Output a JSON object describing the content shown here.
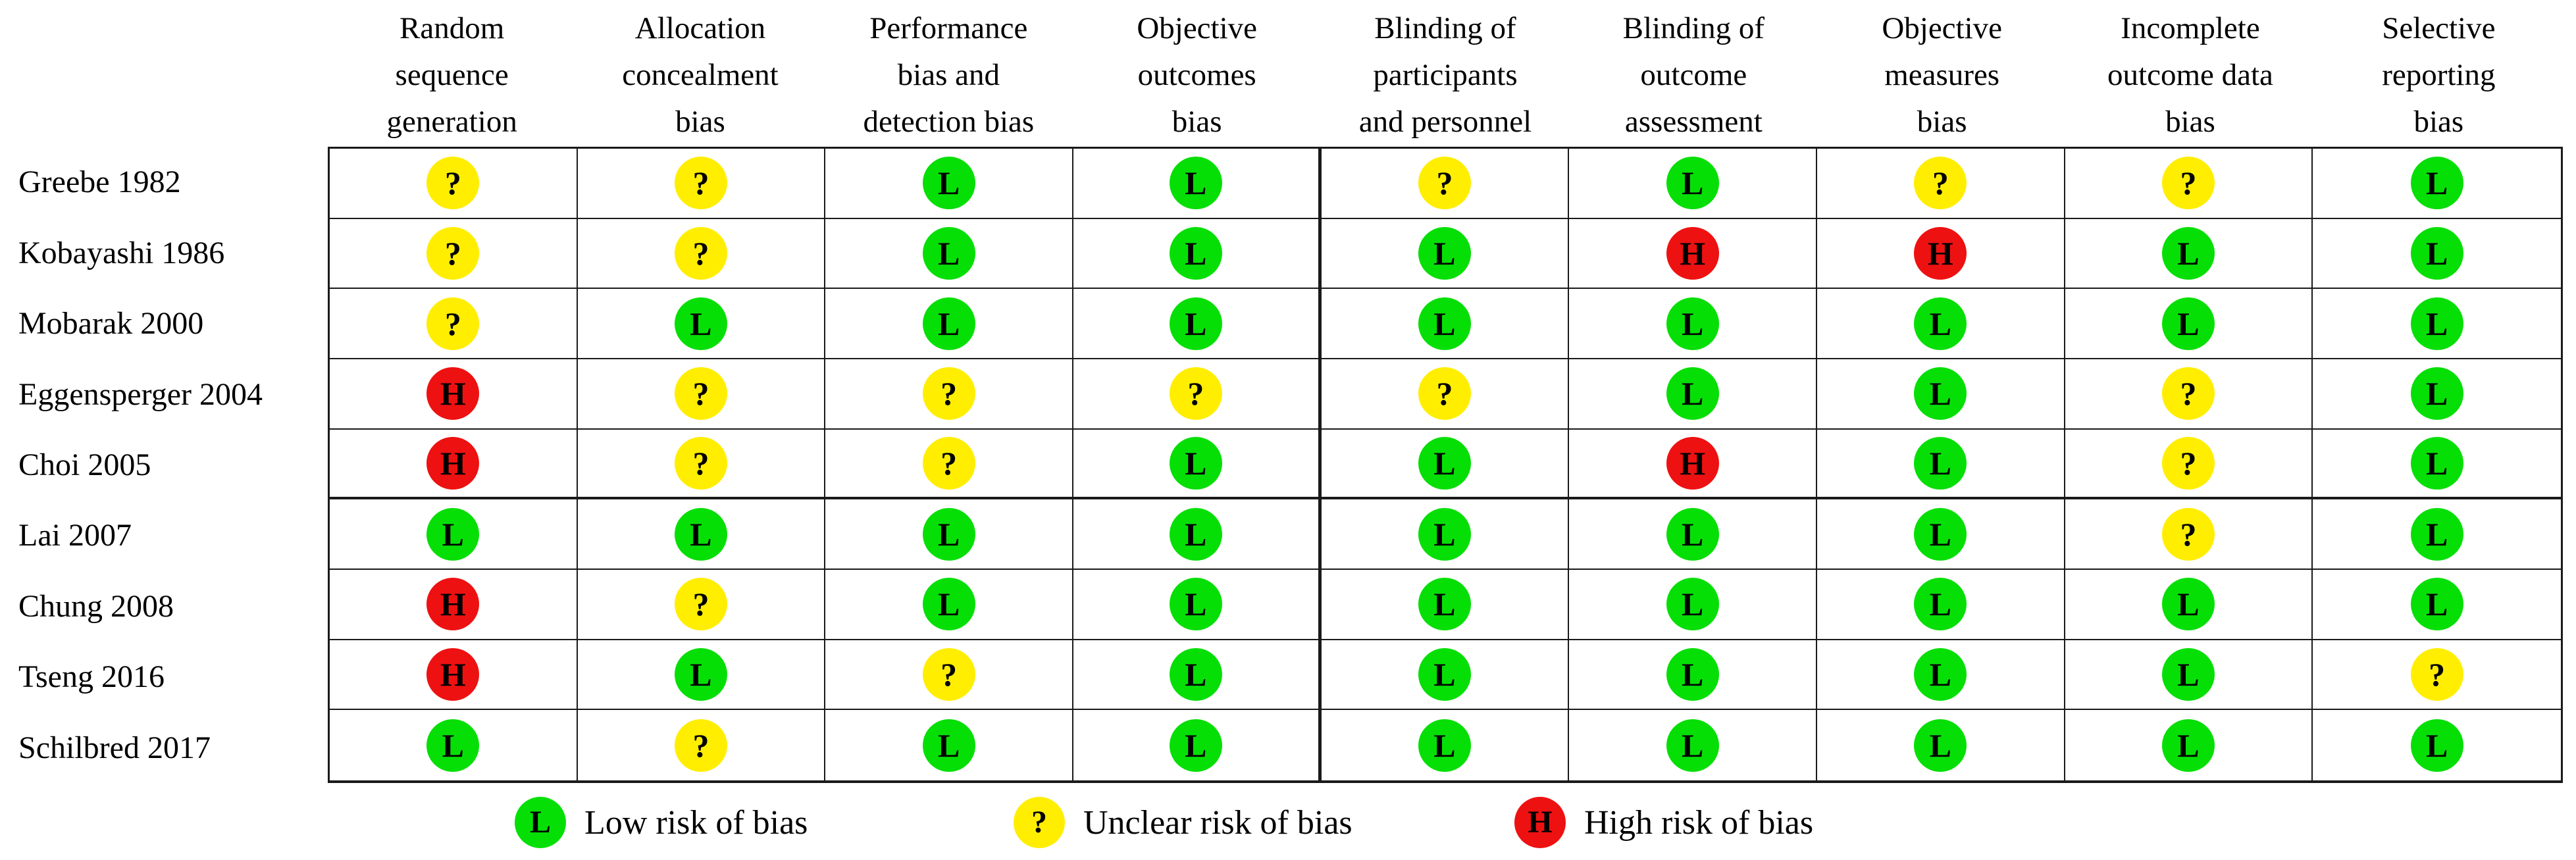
{
  "chart_data": {
    "type": "table",
    "subtype": "risk-of-bias-summary",
    "columns": [
      "Random sequence generation",
      "Allocation concealment bias",
      "Performance bias and detection bias",
      "Objective outcomes bias",
      "Blinding of participants and personnel",
      "Blinding of outcome assessment",
      "Objective measures bias",
      "Incomplete outcome data bias",
      "Selective reporting bias"
    ],
    "header_lines": [
      [
        "Random",
        "sequence",
        "generation"
      ],
      [
        "Allocation",
        "concealment",
        "bias"
      ],
      [
        "Performance",
        "bias and",
        "detection bias"
      ],
      [
        "Objective",
        "outcomes",
        "bias"
      ],
      [
        "Blinding of",
        "participants",
        "and personnel"
      ],
      [
        "Blinding of",
        "outcome",
        "assessment"
      ],
      [
        "Objective",
        "measures",
        "bias"
      ],
      [
        "Incomplete",
        "outcome data",
        "bias"
      ],
      [
        "Selective",
        "reporting",
        "bias"
      ]
    ],
    "rows": [
      "Greebe 1982",
      "Kobayashi 1986",
      "Mobarak 2000",
      "Eggensperger 2004",
      "Choi 2005",
      "Lai 2007",
      "Chung 2008",
      "Tseng 2016",
      "Schilbred 2017"
    ],
    "values": [
      [
        "unclear",
        "unclear",
        "low",
        "low",
        "unclear",
        "low",
        "unclear",
        "unclear",
        "low"
      ],
      [
        "unclear",
        "unclear",
        "low",
        "low",
        "low",
        "high",
        "high",
        "low",
        "low"
      ],
      [
        "unclear",
        "low",
        "low",
        "low",
        "low",
        "low",
        "low",
        "low",
        "low"
      ],
      [
        "high",
        "unclear",
        "unclear",
        "unclear",
        "unclear",
        "low",
        "low",
        "unclear",
        "low"
      ],
      [
        "high",
        "unclear",
        "unclear",
        "low",
        "low",
        "high",
        "low",
        "unclear",
        "low"
      ],
      [
        "low",
        "low",
        "low",
        "low",
        "low",
        "low",
        "low",
        "unclear",
        "low"
      ],
      [
        "high",
        "unclear",
        "low",
        "low",
        "low",
        "low",
        "low",
        "low",
        "low"
      ],
      [
        "high",
        "low",
        "unclear",
        "low",
        "low",
        "low",
        "low",
        "low",
        "unclear"
      ],
      [
        "low",
        "unclear",
        "low",
        "low",
        "low",
        "low",
        "low",
        "low",
        "low"
      ]
    ],
    "symbols": {
      "low": "L",
      "unclear": "?",
      "high": "H"
    },
    "colors": {
      "low": "#06df06",
      "unclear": "#ffee00",
      "high": "#ee1111"
    },
    "legend": [
      {
        "key": "low",
        "label": "Low risk of bias"
      },
      {
        "key": "unclear",
        "label": "Unclear risk of bias"
      },
      {
        "key": "high",
        "label": "High risk of bias"
      }
    ]
  }
}
